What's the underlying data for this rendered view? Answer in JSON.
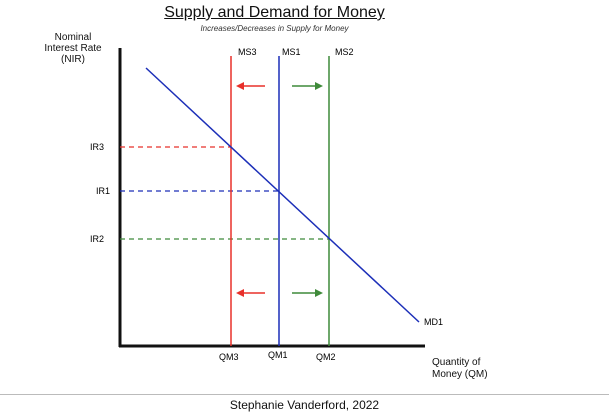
{
  "title": "Supply and Demand for Money",
  "subtitle": "Increases/Decreases in Supply for Money",
  "y_axis_label": [
    "Nominal",
    "Interest Rate",
    "(NIR)"
  ],
  "x_axis_label": [
    "Quantity of",
    "Money (QM)"
  ],
  "credit": "Stephanie Vanderford, 2022",
  "curves": {
    "ms3": "MS3",
    "ms1": "MS1",
    "ms2": "MS2",
    "md1": "MD1"
  },
  "rates": {
    "ir3": "IR3",
    "ir1": "IR1",
    "ir2": "IR2"
  },
  "quantities": {
    "qm3": "QM3",
    "qm1": "QM1",
    "qm2": "QM2"
  },
  "colors": {
    "ms3_red": "#e8302a",
    "ms1_blue": "#1c2fb8",
    "ms2_green": "#3f8a3a",
    "axis": "#111111"
  }
}
